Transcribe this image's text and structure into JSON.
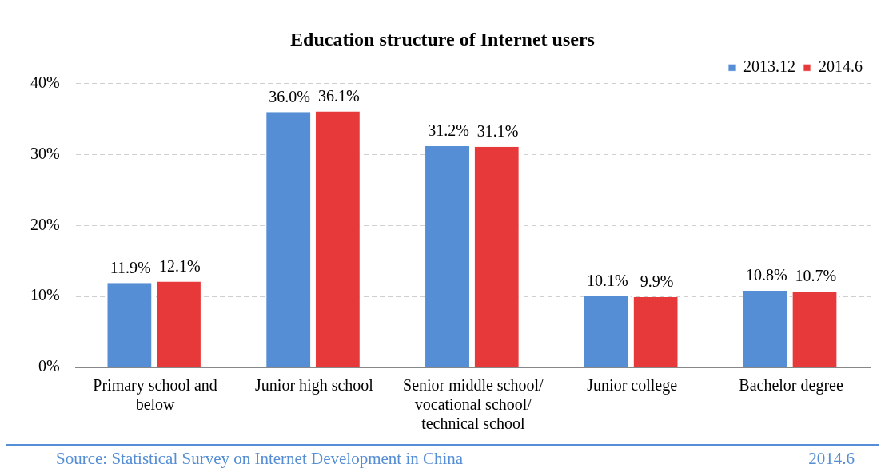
{
  "chart_data": {
    "type": "bar",
    "title": "Education structure of Internet users",
    "categories": [
      "Primary school and below",
      "Junior high school",
      "Senior middle school/vocational school/technical school",
      "Junior college",
      "Bachelor degree"
    ],
    "series": [
      {
        "name": "2013.12",
        "color": "#558ed5",
        "values": [
          11.9,
          36.0,
          31.2,
          10.1,
          10.8
        ],
        "value_labels": [
          "11.9%",
          "36.0%",
          "31.2%",
          "10.1%",
          "10.8%"
        ]
      },
      {
        "name": "2014.6",
        "color": "#e8393a",
        "values": [
          12.1,
          36.1,
          31.1,
          9.9,
          10.7
        ],
        "value_labels": [
          "12.1%",
          "36.1%",
          "31.1%",
          "9.9%",
          "10.7%"
        ]
      }
    ],
    "ylim": [
      0,
      40
    ],
    "yticks": [
      {
        "value": 0,
        "label": "0%"
      },
      {
        "value": 10,
        "label": "10%"
      },
      {
        "value": 20,
        "label": "20%"
      },
      {
        "value": 30,
        "label": "30%"
      },
      {
        "value": 40,
        "label": "40%"
      }
    ],
    "grid": "y",
    "line_style": "dashed",
    "legend": "top right",
    "annotations": [
      "Source: Statistical Survey on Internet Development in China",
      "2014.6"
    ]
  }
}
